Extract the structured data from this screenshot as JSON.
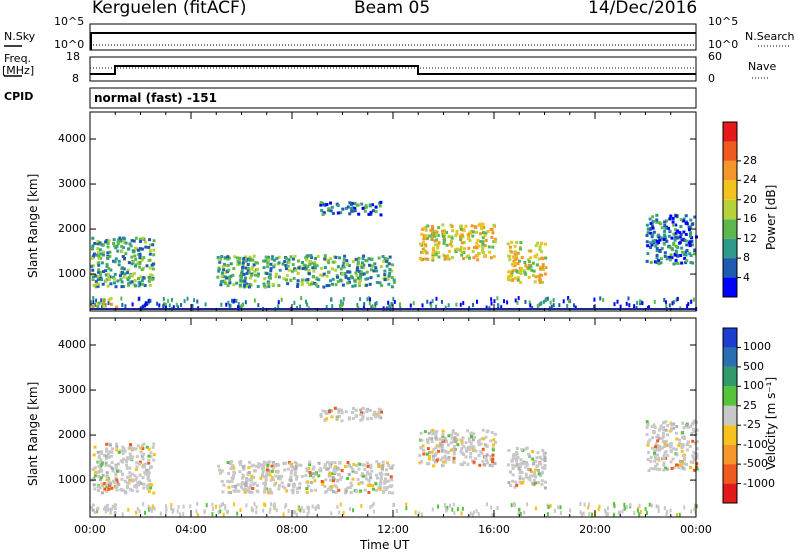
{
  "header": {
    "station": "Kerguelen (fitACF)",
    "beam": "Beam 05",
    "date": "14/Dec/2016"
  },
  "panels": {
    "nsky_label": "N.Sky",
    "nsearch_label": "N.Search",
    "freq_label": "Freq.",
    "freq_unit": "[MHz]",
    "nave_label": "Nave",
    "cpid_label": "CPID",
    "cpid_value": "normal (fast) -151",
    "nsky_ticks": [
      "10^5",
      "10^0"
    ],
    "nsearch_ticks": [
      "10^5",
      "10^0"
    ],
    "freq_ticks": [
      "18",
      "8"
    ],
    "nave_ticks": [
      "60",
      "0"
    ]
  },
  "chart_data": [
    {
      "type": "heatmap",
      "name": "power",
      "ylabel": "Slant Range [km]",
      "xlabel": "Time UT",
      "ylim": [
        180,
        4600
      ],
      "xlim": [
        0,
        24
      ],
      "y_ticks": [
        "1000",
        "2000",
        "3000",
        "4000"
      ],
      "x_ticks": [
        "00:00",
        "04:00",
        "08:00",
        "12:00",
        "16:00",
        "20:00",
        "00:00"
      ],
      "colorbar": {
        "label": "Power [dB]",
        "ticks": [
          "4",
          "8",
          "12",
          "16",
          "20",
          "24",
          "28"
        ],
        "colors": [
          "#0000ff",
          "#1e5ab0",
          "#2f9a8a",
          "#5cb84c",
          "#b6d43a",
          "#f2c21e",
          "#f5962a",
          "#f05a1e",
          "#e41a1a"
        ]
      },
      "echo_regions": [
        {
          "t0": 0.0,
          "t1": 2.5,
          "r0": 700,
          "r1": 1800,
          "level": "medium"
        },
        {
          "t0": 0.0,
          "t1": 1.0,
          "r0": 250,
          "r1": 450,
          "level": "high"
        },
        {
          "t0": 5.0,
          "t1": 12.0,
          "r0": 700,
          "r1": 1400,
          "level": "medium"
        },
        {
          "t0": 9.0,
          "t1": 11.5,
          "r0": 2300,
          "r1": 2600,
          "level": "low"
        },
        {
          "t0": 13.0,
          "t1": 16.0,
          "r0": 1300,
          "r1": 2100,
          "level": "high"
        },
        {
          "t0": 16.5,
          "t1": 18.0,
          "r0": 800,
          "r1": 1700,
          "level": "high"
        },
        {
          "t0": 22.0,
          "t1": 24.0,
          "r0": 1200,
          "r1": 2300,
          "level": "low"
        }
      ]
    },
    {
      "type": "heatmap",
      "name": "velocity",
      "ylabel": "Slant Range [km]",
      "xlabel": "Time UT",
      "ylim": [
        180,
        4600
      ],
      "xlim": [
        0,
        24
      ],
      "y_ticks": [
        "1000",
        "2000",
        "3000",
        "4000"
      ],
      "x_ticks": [
        "00:00",
        "04:00",
        "08:00",
        "12:00",
        "16:00",
        "20:00",
        "00:00"
      ],
      "colorbar": {
        "label": "Velocity [m s⁻¹]",
        "ticks": [
          "1000",
          "500",
          "100",
          "25",
          "-25",
          "-100",
          "-500",
          "-1000"
        ],
        "colors": [
          "#1a3ecf",
          "#2b6fb0",
          "#2f9a6a",
          "#55c43a",
          "#c8c8c8",
          "#f7c21e",
          "#f5962a",
          "#f05a1e",
          "#e41a1a"
        ]
      }
    }
  ],
  "time_label": "Time UT"
}
